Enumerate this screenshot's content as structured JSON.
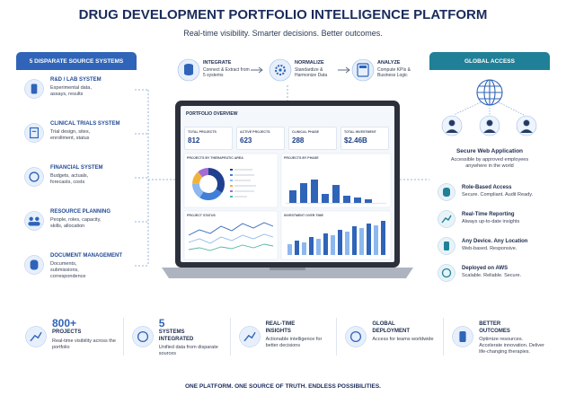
{
  "header": {
    "title": "DRUG DEVELOPMENT PORTFOLIO INTELLIGENCE PLATFORM",
    "subtitle": "Real-time visibility. Smarter decisions. Better outcomes."
  },
  "sources": {
    "title": "5 DISPARATE SOURCE SYSTEMS",
    "items": [
      {
        "title": "R&D / LAB SYSTEM",
        "description": "Experimental data, assays, results"
      },
      {
        "title": "CLINICAL TRIALS SYSTEM",
        "description": "Trial design, sites, enrollment, status"
      },
      {
        "title": "FINANCIAL SYSTEM",
        "description": "Budgets, actuals, forecasts, costs"
      },
      {
        "title": "RESOURCE PLANNING",
        "description": "People, roles, capacity, skills, allocation"
      },
      {
        "title": "DOCUMENT MANAGEMENT",
        "description": "Documents, submissions, correspondence"
      }
    ]
  },
  "pipeline": [
    {
      "title": "INTEGRATE",
      "description": "Connect & Extract from 5 systems"
    },
    {
      "title": "NORMALIZE",
      "description": "Standardize & Harmonize Data"
    },
    {
      "title": "ANALYZE",
      "description": "Compute KPIs & Business Logic"
    }
  ],
  "dashboard": {
    "title": "PORTFOLIO OVERVIEW",
    "kpis": [
      {
        "label": "TOTAL PROJECTS",
        "value": "812"
      },
      {
        "label": "ACTIVE PROJECTS",
        "value": "623"
      },
      {
        "label": "CLINICAL PHASE",
        "value": "288"
      },
      {
        "label": "TOTAL INVESTMENT",
        "value": "$2.46B"
      }
    ],
    "panels": [
      "PROJECTS BY THERAPEUTIC AREA",
      "PROJECTS BY PHASE",
      "PROJECT STATUS",
      "INVESTMENT OVER TIME"
    ]
  },
  "access": {
    "title": "GLOBAL ACCESS",
    "app_title": "Secure Web Application",
    "app_description": "Accessible by approved employees anywhere in the world",
    "features": [
      {
        "title": "Role-Based Access",
        "description": "Secure. Compliant. Audit Ready."
      },
      {
        "title": "Real-Time Reporting",
        "description": "Always up-to-date insights"
      },
      {
        "title": "Any Device. Any Location",
        "description": "Web-based. Responsive."
      },
      {
        "title": "Deployed on AWS",
        "description": "Scalable. Reliable. Secure."
      }
    ]
  },
  "highlights": [
    {
      "value": "800+",
      "title": "PROJECTS",
      "description": "Real-time visibility across the portfolio"
    },
    {
      "value": "5",
      "title": "SYSTEMS INTEGRATED",
      "description": "Unified data from disparate sources"
    },
    {
      "title": "REAL-TIME INSIGHTS",
      "description": "Actionable intelligence for better decisions"
    },
    {
      "title": "GLOBAL DEPLOYMENT",
      "description": "Access for teams worldwide"
    },
    {
      "title": "BETTER OUTCOMES",
      "description": "Optimize resources. Accelerate innovation. Deliver life-changing therapies."
    }
  ],
  "footer": "ONE PLATFORM. ONE SOURCE OF TRUTH. ENDLESS POSSIBILITIES."
}
